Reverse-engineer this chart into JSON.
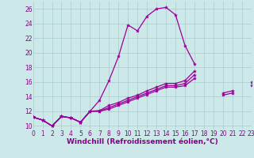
{
  "background_color": "#cce8e8",
  "grid_color": "#aacccc",
  "line_color": "#990099",
  "marker": "*",
  "markersize": 3,
  "linewidth": 0.9,
  "xlabel": "Windchill (Refroidissement éolien,°C)",
  "ylabel_ticks": [
    10,
    12,
    14,
    16,
    18,
    20,
    22,
    24,
    26
  ],
  "xlabel_ticks": [
    0,
    1,
    2,
    3,
    4,
    5,
    6,
    7,
    8,
    9,
    10,
    11,
    12,
    13,
    14,
    15,
    16,
    17,
    18,
    19,
    20,
    21,
    22,
    23
  ],
  "curves": [
    {
      "x": [
        0,
        1,
        2,
        3,
        4,
        5,
        6,
        7,
        8,
        9,
        10,
        11,
        12,
        13,
        14,
        15,
        16,
        17
      ],
      "y": [
        11.2,
        10.8,
        10.0,
        11.3,
        11.1,
        10.5,
        12.0,
        13.5,
        16.2,
        19.5,
        23.8,
        23.0,
        25.0,
        26.0,
        26.2,
        25.2,
        21.0,
        18.5
      ]
    },
    {
      "x": [
        0,
        1,
        2,
        3,
        4,
        5,
        6,
        7,
        8,
        9,
        10,
        11,
        12,
        13,
        14,
        15,
        16,
        17,
        18,
        19,
        20,
        21,
        22,
        23
      ],
      "y": [
        11.2,
        10.8,
        10.0,
        11.3,
        11.1,
        10.5,
        12.0,
        12.1,
        12.8,
        13.2,
        13.8,
        14.2,
        14.8,
        15.3,
        15.8,
        15.8,
        16.2,
        17.5,
        null,
        null,
        null,
        null,
        null,
        null
      ]
    },
    {
      "x": [
        0,
        1,
        2,
        3,
        4,
        5,
        6,
        7,
        8,
        9,
        10,
        11,
        12,
        13,
        14,
        15,
        16,
        17,
        18,
        19,
        20,
        21,
        22,
        23
      ],
      "y": [
        11.2,
        10.8,
        10.0,
        11.3,
        11.1,
        10.5,
        12.0,
        12.0,
        12.5,
        13.0,
        13.5,
        14.0,
        14.5,
        15.0,
        15.5,
        15.5,
        15.8,
        17.0,
        null,
        null,
        14.5,
        14.8,
        null,
        16.0
      ]
    },
    {
      "x": [
        0,
        1,
        2,
        3,
        4,
        5,
        6,
        7,
        8,
        9,
        10,
        11,
        12,
        13,
        14,
        15,
        16,
        17,
        18,
        19,
        20,
        21,
        22,
        23
      ],
      "y": [
        11.2,
        10.8,
        10.0,
        11.3,
        11.1,
        10.5,
        12.0,
        12.0,
        12.3,
        12.8,
        13.3,
        13.8,
        14.3,
        14.8,
        15.3,
        15.3,
        15.5,
        16.5,
        null,
        null,
        14.2,
        14.5,
        null,
        15.5
      ]
    }
  ],
  "xlim": [
    0,
    23
  ],
  "ylim": [
    9.5,
    27.0
  ],
  "font_color": "#880088",
  "tick_label_size": 5.5,
  "xlabel_size": 6.5
}
